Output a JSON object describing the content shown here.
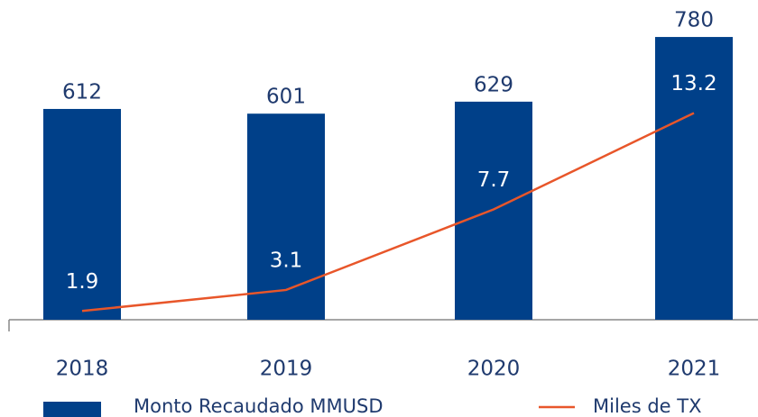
{
  "chart_data": {
    "type": "bar-line",
    "categories": [
      "2018",
      "2019",
      "2020",
      "2021"
    ],
    "series": [
      {
        "name": "Monto Recaudado MMUSD",
        "color": "#004089",
        "type": "bar",
        "values": [
          612,
          601,
          629,
          780
        ]
      },
      {
        "name": "Miles de TX",
        "color": "#e8562a",
        "type": "line",
        "axis": "y2",
        "values": [
          1.9,
          3.1,
          7.7,
          13.2
        ]
      }
    ],
    "ylim": [
      120,
      860
    ],
    "y2lim": [
      1.4,
      19.5
    ]
  }
}
